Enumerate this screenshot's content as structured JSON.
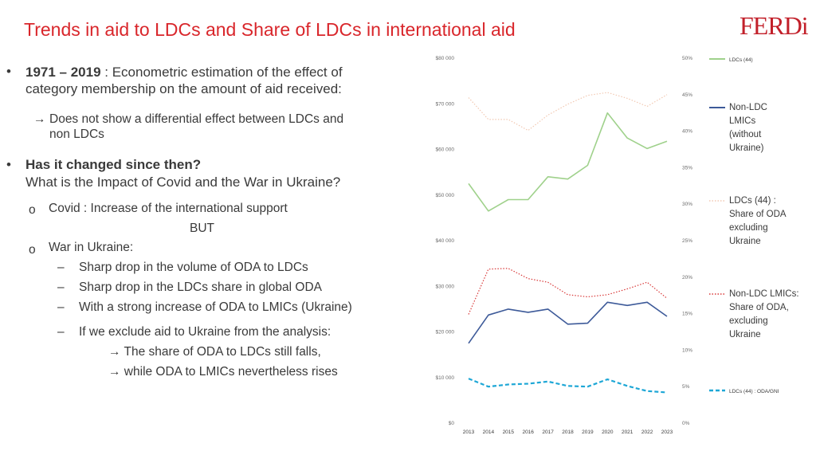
{
  "slide": {
    "title": "Trends in aid to LDCs and Share of LDCs in international aid",
    "logo_text": "FERDi",
    "bullet1": {
      "bold": "1971 – 2019",
      "text1": " : Econometric estimation of the effect of",
      "text2": "category membership on the amount of aid received:",
      "arrow": "→",
      "sub1": "Does not show a differential effect between LDCs and",
      "sub2": "non LDCs"
    },
    "bullet2": {
      "bold": "Has it changed since then?",
      "text": "What is the Impact of Covid and the War in Ukraine?",
      "o1_marker": "o",
      "o1": "Covid : Increase of the international support",
      "but": "BUT",
      "o2_marker": "o",
      "o2": "War in Ukraine:",
      "dash": "–",
      "d1": "Sharp drop in the volume of ODA to LDCs",
      "d2": "Sharp drop in the LDCs share in global ODA",
      "d3": "With a strong increase of ODA to LMICs (Ukraine)",
      "d4": "If we exclude aid to Ukraine from the analysis:",
      "a1": "→ The share of ODA to LDCs still falls,",
      "a2": "→ while ODA to LMICs nevertheless rises"
    }
  },
  "chart_data": {
    "type": "line",
    "x": [
      2013,
      2014,
      2015,
      2016,
      2017,
      2018,
      2019,
      2020,
      2021,
      2022,
      2023
    ],
    "x_tick_labels": [
      "2013",
      "2014",
      "2015",
      "2016",
      "2017",
      "2018",
      "2019",
      "2020",
      "2021",
      "2022",
      "2023"
    ],
    "y_left": {
      "lim": [
        0,
        80000
      ],
      "ticks": [
        0,
        10000,
        20000,
        30000,
        40000,
        50000,
        60000,
        70000,
        80000
      ],
      "tick_labels": [
        "$0",
        "$10 000",
        "$20 000",
        "$30 000",
        "$40 000",
        "$50 000",
        "$60 000",
        "$70 000",
        "$80 000"
      ]
    },
    "y_right": {
      "lim": [
        0,
        50
      ],
      "ticks": [
        0,
        5,
        10,
        15,
        20,
        25,
        30,
        35,
        40,
        45,
        50
      ],
      "tick_labels": [
        "0%",
        "5%",
        "10%",
        "15%",
        "20%",
        "25%",
        "30%",
        "35%",
        "40%",
        "45%",
        "50%"
      ]
    },
    "grid": false,
    "legend_position": "right",
    "series": [
      {
        "name": "LDCs (44)",
        "axis": "left",
        "color": "#9fd18b",
        "style": "solid",
        "values": [
          52500,
          46500,
          49000,
          49000,
          54000,
          53500,
          56500,
          68000,
          62500,
          60200,
          61800
        ]
      },
      {
        "name": "Non-LDC LMICs (without Ukraine)",
        "legend_lines": [
          "Non-LDC",
          "LMICs",
          "(without",
          "Ukraine)"
        ],
        "axis": "left",
        "color": "#3d5a99",
        "style": "solid",
        "values": [
          17500,
          23700,
          25000,
          24300,
          25000,
          21700,
          21900,
          26500,
          25800,
          26500,
          23400
        ]
      },
      {
        "name": "LDCs (44) : Share of ODA excluding Ukraine",
        "legend_lines": [
          "LDCs (44) :",
          "Share of ODA",
          "excluding",
          "Ukraine"
        ],
        "axis": "right",
        "color": "#f2c9b3",
        "style": "dotted",
        "values": [
          44.6,
          41.6,
          41.6,
          40.1,
          42.2,
          43.7,
          44.9,
          45.3,
          44.5,
          43.4,
          45.0
        ]
      },
      {
        "name": "Non-LDC LMICs: Share of ODA, excluding Ukraine",
        "legend_lines": [
          "Non-LDC LMICs:",
          "Share of ODA,",
          "excluding",
          "Ukraine"
        ],
        "axis": "right",
        "color": "#d93a3a",
        "style": "dotted",
        "values": [
          14.9,
          21.1,
          21.2,
          19.8,
          19.3,
          17.6,
          17.3,
          17.6,
          18.4,
          19.3,
          17.1
        ]
      },
      {
        "name": "LDCs (44) : ODA/GNI",
        "axis": "right",
        "color": "#1ea7d6",
        "style": "dashed",
        "values": [
          6.1,
          5.0,
          5.3,
          5.4,
          5.7,
          5.1,
          5.0,
          6.0,
          5.1,
          4.4,
          4.2
        ]
      }
    ]
  }
}
